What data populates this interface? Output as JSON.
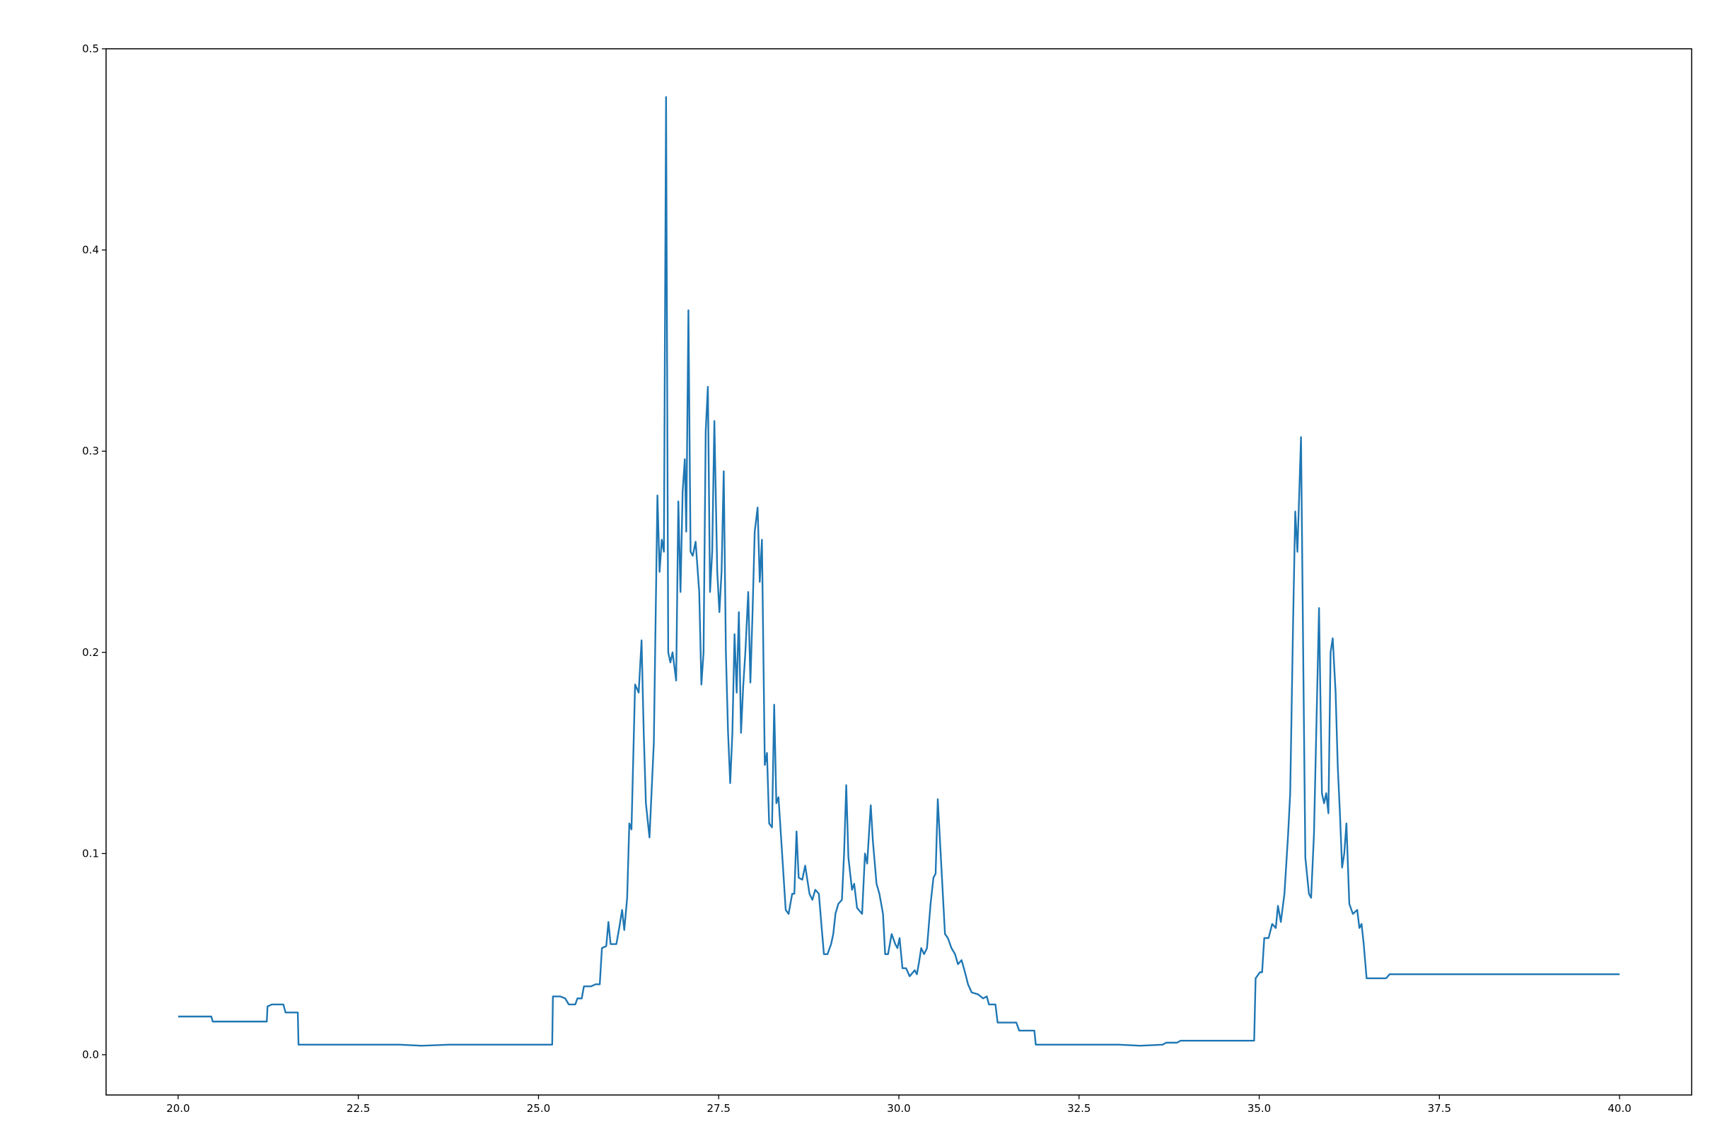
{
  "chart_data": {
    "type": "line",
    "color": "#1f77b4",
    "grid": false,
    "xlim": [
      19.0,
      41.0
    ],
    "ylim": [
      -0.02,
      0.5
    ],
    "xticks": [
      {
        "value": 20,
        "label": "20.0"
      },
      22.5,
      {
        "value": 25,
        "label": "25.0"
      },
      27.5,
      {
        "value": 30,
        "label": "30.0"
      },
      32.5,
      {
        "value": 35,
        "label": "35.0"
      },
      37.5,
      {
        "value": 40,
        "label": "40.0"
      }
    ],
    "yticks": [
      {
        "value": 0,
        "label": "0.0"
      },
      0.1,
      0.2,
      0.3,
      0.4,
      0.5
    ],
    "x": [
      20.0,
      20.46,
      20.48,
      21.23,
      21.24,
      21.3,
      21.46,
      21.49,
      21.66,
      21.67,
      23.07,
      23.38,
      23.76,
      25.19,
      25.2,
      25.3,
      25.37,
      25.42,
      25.51,
      25.54,
      25.6,
      25.63,
      25.73,
      25.79,
      25.85,
      25.88,
      25.94,
      25.97,
      26.0,
      26.08,
      26.12,
      26.16,
      26.19,
      26.23,
      26.26,
      26.29,
      26.34,
      26.39,
      26.43,
      26.46,
      26.49,
      26.54,
      26.6,
      26.65,
      26.68,
      26.71,
      26.74,
      26.77,
      26.8,
      26.83,
      26.86,
      26.91,
      26.94,
      26.97,
      27.0,
      27.03,
      27.05,
      27.08,
      27.11,
      27.14,
      27.18,
      27.23,
      27.26,
      27.29,
      27.32,
      27.35,
      27.38,
      27.41,
      27.44,
      27.48,
      27.51,
      27.54,
      27.57,
      27.6,
      27.63,
      27.66,
      27.69,
      27.72,
      27.75,
      27.78,
      27.81,
      27.84,
      27.87,
      27.91,
      27.94,
      27.97,
      28.0,
      28.04,
      28.07,
      28.1,
      28.14,
      28.17,
      28.2,
      28.24,
      28.27,
      28.3,
      28.33,
      28.38,
      28.43,
      28.47,
      28.52,
      28.55,
      28.58,
      28.61,
      28.66,
      28.7,
      28.76,
      28.8,
      28.84,
      28.89,
      28.92,
      28.96,
      29.01,
      29.06,
      29.09,
      29.12,
      29.16,
      29.21,
      29.24,
      29.27,
      29.3,
      29.35,
      29.38,
      29.42,
      29.49,
      29.53,
      29.56,
      29.61,
      29.64,
      29.69,
      29.73,
      29.78,
      29.81,
      29.85,
      29.9,
      29.95,
      29.98,
      30.01,
      30.05,
      30.1,
      30.15,
      30.22,
      30.25,
      30.28,
      30.31,
      30.35,
      30.39,
      30.44,
      30.48,
      30.51,
      30.54,
      30.58,
      30.61,
      30.64,
      30.68,
      30.73,
      30.78,
      30.82,
      30.87,
      30.91,
      30.96,
      31.01,
      31.1,
      31.17,
      31.22,
      31.25,
      31.34,
      31.37,
      31.63,
      31.67,
      31.88,
      31.9,
      33.05,
      33.35,
      33.66,
      33.71,
      33.86,
      33.91,
      34.93,
      34.95,
      35.01,
      35.04,
      35.07,
      35.13,
      35.18,
      35.23,
      35.26,
      35.3,
      35.35,
      35.4,
      35.43,
      35.47,
      35.5,
      35.53,
      35.58,
      35.61,
      35.64,
      35.69,
      35.72,
      35.76,
      35.83,
      35.87,
      35.9,
      35.93,
      35.96,
      35.99,
      36.02,
      36.06,
      36.09,
      36.12,
      36.15,
      36.18,
      36.21,
      36.25,
      36.3,
      36.36,
      36.39,
      36.42,
      36.45,
      36.49,
      36.76,
      36.81,
      40.0
    ],
    "series": [
      {
        "color": "#1f77b4",
        "values": [
          0.019,
          0.019,
          0.0165,
          0.0165,
          0.024,
          0.025,
          0.025,
          0.021,
          0.021,
          0.005,
          0.005,
          0.0045,
          0.005,
          0.005,
          0.029,
          0.029,
          0.028,
          0.025,
          0.025,
          0.028,
          0.028,
          0.034,
          0.034,
          0.035,
          0.035,
          0.053,
          0.054,
          0.066,
          0.055,
          0.055,
          0.063,
          0.072,
          0.062,
          0.078,
          0.115,
          0.112,
          0.184,
          0.18,
          0.206,
          0.16,
          0.125,
          0.108,
          0.155,
          0.278,
          0.24,
          0.256,
          0.25,
          0.476,
          0.2,
          0.195,
          0.2,
          0.186,
          0.275,
          0.23,
          0.28,
          0.296,
          0.26,
          0.37,
          0.25,
          0.248,
          0.255,
          0.23,
          0.184,
          0.2,
          0.31,
          0.332,
          0.23,
          0.25,
          0.315,
          0.24,
          0.22,
          0.24,
          0.29,
          0.2,
          0.16,
          0.135,
          0.16,
          0.209,
          0.18,
          0.22,
          0.16,
          0.183,
          0.2,
          0.23,
          0.185,
          0.22,
          0.26,
          0.272,
          0.235,
          0.256,
          0.144,
          0.15,
          0.115,
          0.113,
          0.174,
          0.125,
          0.128,
          0.1,
          0.072,
          0.07,
          0.08,
          0.08,
          0.111,
          0.088,
          0.087,
          0.094,
          0.08,
          0.077,
          0.082,
          0.08,
          0.067,
          0.05,
          0.05,
          0.055,
          0.06,
          0.07,
          0.075,
          0.077,
          0.1,
          0.134,
          0.098,
          0.082,
          0.085,
          0.073,
          0.07,
          0.1,
          0.095,
          0.124,
          0.106,
          0.085,
          0.08,
          0.07,
          0.05,
          0.05,
          0.06,
          0.055,
          0.053,
          0.058,
          0.043,
          0.043,
          0.039,
          0.042,
          0.04,
          0.046,
          0.053,
          0.05,
          0.053,
          0.075,
          0.088,
          0.09,
          0.127,
          0.1,
          0.08,
          0.06,
          0.058,
          0.053,
          0.05,
          0.045,
          0.047,
          0.042,
          0.035,
          0.031,
          0.03,
          0.028,
          0.029,
          0.025,
          0.025,
          0.016,
          0.016,
          0.012,
          0.012,
          0.005,
          0.005,
          0.0045,
          0.005,
          0.006,
          0.006,
          0.007,
          0.007,
          0.038,
          0.041,
          0.041,
          0.058,
          0.058,
          0.065,
          0.063,
          0.074,
          0.066,
          0.08,
          0.109,
          0.13,
          0.215,
          0.27,
          0.25,
          0.307,
          0.2,
          0.098,
          0.08,
          0.078,
          0.11,
          0.222,
          0.13,
          0.125,
          0.13,
          0.12,
          0.2,
          0.207,
          0.18,
          0.143,
          0.12,
          0.093,
          0.1,
          0.115,
          0.075,
          0.07,
          0.072,
          0.063,
          0.065,
          0.055,
          0.038,
          0.038,
          0.04,
          0.04
        ]
      }
    ]
  }
}
